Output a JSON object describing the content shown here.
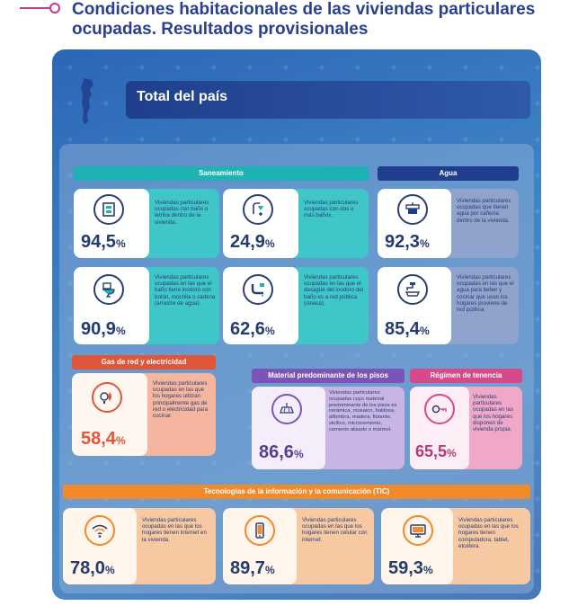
{
  "header": {
    "title": "Condiciones habitacionales de las viviendas particulares ocupadas. Resultados provisionales"
  },
  "banner": {
    "title": "Total del país"
  },
  "sections": {
    "saneamiento": "Saneamiento",
    "agua": "Agua",
    "gas": "Gas de red y electricidad",
    "pisos": "Material predominante de los pisos",
    "tenencia": "Régimen de tenencia",
    "tic": "Tecnologías de la información y la comunicación (TIC)"
  },
  "tiles": {
    "bano_letrina": {
      "value": "94,5",
      "unit": "%",
      "icon": "bathroom-icon",
      "text": "Viviendas particulares ocupadas con baño o letrina dentro de la vivienda."
    },
    "dos_banos": {
      "value": "24,9",
      "unit": "%",
      "icon": "shower-icon",
      "text": "Viviendas particulares ocupadas con dos o más baños."
    },
    "agua_caneria": {
      "value": "92,3",
      "unit": "%",
      "icon": "sink-icon",
      "text": "Viviendas particulares ocupadas que tienen agua por cañería dentro de la vivienda."
    },
    "inodoro": {
      "value": "90,9",
      "unit": "%",
      "icon": "toilet-icon",
      "text": "Viviendas particulares ocupadas en las que el baño tiene inodoro con botón, mochila o cadena (arrastre de agua)."
    },
    "desague": {
      "value": "62,6",
      "unit": "%",
      "icon": "pipe-icon",
      "text": "Viviendas particulares ocupadas en las que el desagüe del inodoro del baño es a red pública (cloaca)."
    },
    "agua_red": {
      "value": "85,4",
      "unit": "%",
      "icon": "faucet-icon",
      "text": "Viviendas particulares ocupadas en las que el agua para beber y cocinar que usan los hogares proviene de red pública."
    },
    "gas_red": {
      "value": "58,4",
      "unit": "%",
      "icon": "gas-electricity-icon",
      "text": "Viviendas particulares ocupadas en las que los hogares utilizan principalmente gas de red o electricidad para cocinar."
    },
    "pisos": {
      "value": "86,6",
      "unit": "%",
      "icon": "floor-icon",
      "text": "Viviendas particulares ocupadas cuyo material predominante de los pisos es cerámica, mosaico, baldosa, alfombra, madera, flotante, vinílico, microcemento, cemento alisado o mármol."
    },
    "tenencia": {
      "value": "65,5",
      "unit": "%",
      "icon": "key-icon",
      "text": "Viviendas particulares ocupadas en las que los hogares disponen de vivienda propia."
    },
    "internet": {
      "value": "78,0",
      "unit": "%",
      "icon": "wifi-icon",
      "text": "Viviendas particulares ocupadas en las que los hogares tienen internet en la vivienda."
    },
    "celular": {
      "value": "89,7",
      "unit": "%",
      "icon": "cellphone-icon",
      "text": "Viviendas particulares ocupadas en las que los hogares tienen celular con internet."
    },
    "computadora": {
      "value": "59,3",
      "unit": "%",
      "icon": "computer-icon",
      "text": "Viviendas particulares ocupadas en las que los hogares tienen computadora, tablet, etcétera."
    }
  },
  "colors": {
    "saneamiento": "#1fb2b2",
    "agua": "#1f3f8c",
    "gas": "#e0563a",
    "pisos": "#7c54b8",
    "tenencia": "#d64a8c",
    "tic": "#f08a2a"
  }
}
